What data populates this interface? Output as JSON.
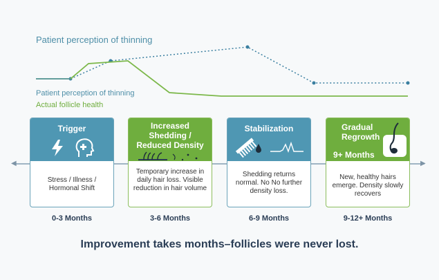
{
  "header": {
    "title": "Patient perception of thinning"
  },
  "legend": {
    "perception": "Patient perception of thinning",
    "health": "Actual follicle health"
  },
  "colors": {
    "blue": "#4f97b3",
    "green": "#6fae3e",
    "dark": "#2a3d55"
  },
  "stages": [
    {
      "title": "Trigger",
      "body": "Stress / Illness / Hormonal Shift",
      "time": "0-3 Months",
      "color": "blue",
      "icons": [
        "lightning-icon",
        "head-plus-icon"
      ]
    },
    {
      "title": "Increased Shedding / Reduced Density",
      "body": "Temporary increase in daily hair loss. Visible reduction in hair volume",
      "time": "3-6 Months",
      "color": "green",
      "icons": [
        "shedding-hair-icon"
      ]
    },
    {
      "title": "Stabilization",
      "body": "Shedding returns normal. No No further density loss.",
      "time": "6-9 Months",
      "color": "blue",
      "icons": [
        "comb-icon",
        "waveform-icon"
      ]
    },
    {
      "title": "Gradual Regrowth",
      "extra": "9+ Months",
      "body": "New, healthy hairs emerge. Density slowly recovers",
      "time": "9-12+ Months",
      "color": "green",
      "icons": [
        "hair-follicle-icon"
      ]
    }
  ],
  "footer": "Improvement takes months–follicles were never lost."
}
